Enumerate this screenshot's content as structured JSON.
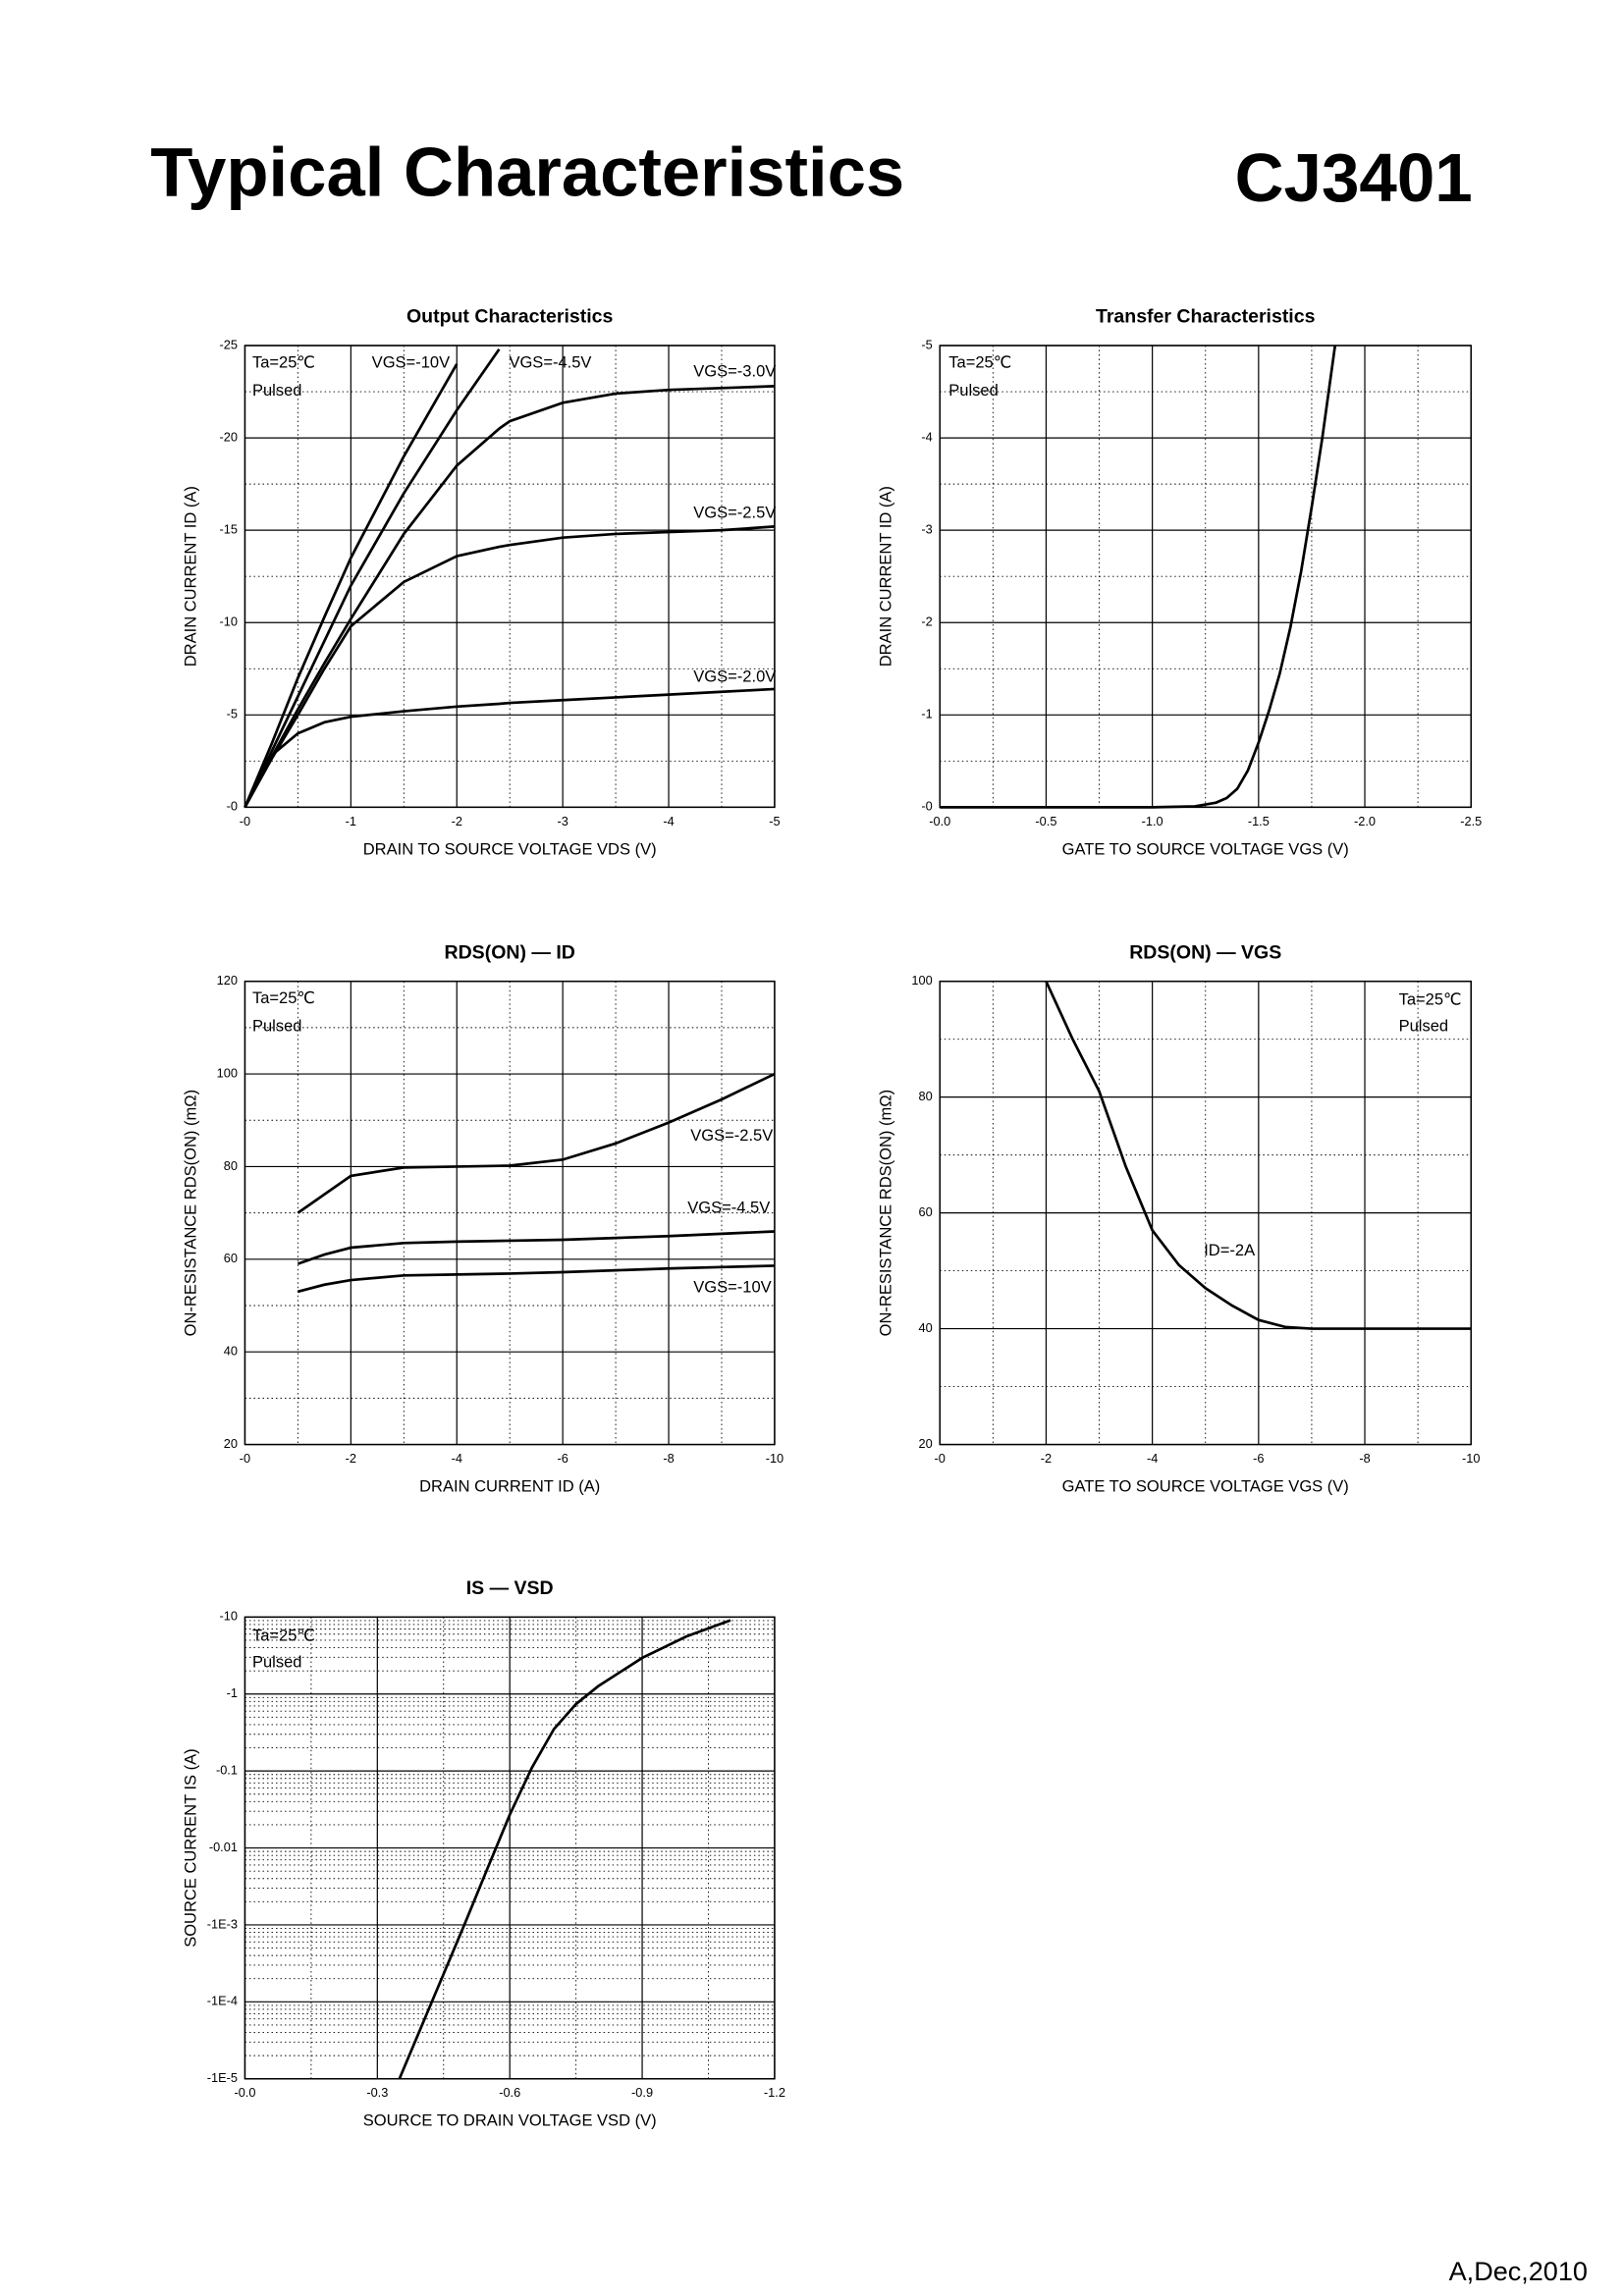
{
  "header": {
    "title": "Typical Characteristics",
    "part": "CJ3401"
  },
  "footer": "A,Dec,2010",
  "chart_data": [
    {
      "type": "line",
      "title": "Output Characteristics",
      "x_label": "DRAIN TO SOURCE VOLTAGE VDS (V)",
      "y_label": "DRAIN CURRENT ID (A)",
      "annotations": [
        "Ta=25℃",
        "Pulsed"
      ],
      "x": [
        0,
        -0.25,
        -0.5,
        -0.75,
        -1,
        -1.5,
        -2,
        -2.4,
        -2.5,
        -3,
        -3.5,
        -4,
        -4.5,
        -5
      ],
      "series": [
        {
          "name": "VGS=-10V",
          "color": "#000000",
          "values": [
            0,
            -3.4,
            -7,
            -10.3,
            -13.5,
            -19,
            -24,
            null,
            null,
            null,
            null,
            null,
            null,
            null
          ]
        },
        {
          "name": "VGS=-4.5V",
          "color": "#000000",
          "values": [
            0,
            -3,
            -6,
            -9,
            -12,
            -17,
            -21.5,
            -24.8,
            null,
            null,
            null,
            null,
            null,
            null
          ]
        },
        {
          "name": "VGS=-3.0V",
          "color": "#000000",
          "values": [
            0,
            -2.7,
            -5.3,
            -7.8,
            -10.2,
            -14.8,
            -18.5,
            -20.5,
            -20.9,
            -21.9,
            -22.4,
            -22.6,
            -22.7,
            -22.8
          ]
        },
        {
          "name": "VGS=-2.5V",
          "color": "#000000",
          "values": [
            0,
            -2.6,
            -5,
            -7.5,
            -9.8,
            -12.2,
            -13.6,
            -14.1,
            -14.2,
            -14.6,
            -14.8,
            -14.9,
            -15,
            -15.2
          ]
        },
        {
          "name": "VGS=-2.0V",
          "color": "#000000",
          "values": [
            0,
            -2.8,
            -4,
            -4.6,
            -4.9,
            -5.2,
            -5.45,
            -5.6,
            -5.65,
            -5.8,
            -5.95,
            -6.1,
            -6.25,
            -6.4
          ]
        }
      ],
      "xlim": [
        0,
        -5
      ],
      "xticks": [
        {
          "value": 0,
          "label": "-0"
        },
        -1,
        -2,
        -3,
        -4,
        -5
      ],
      "ylim": [
        0,
        -25
      ],
      "yticks": [
        {
          "value": 0,
          "label": "-0"
        },
        -5,
        -10,
        -15,
        -20,
        -25
      ],
      "grid": true,
      "minor_grid": true
    },
    {
      "type": "line",
      "title": "Transfer Characteristics",
      "x_label": "GATE TO SOURCE VOLTAGE VGS (V)",
      "y_label": "DRAIN CURRENT ID (A)",
      "annotations": [
        "Ta=25℃",
        "Pulsed"
      ],
      "x": [
        0,
        -0.5,
        -1,
        -1.2,
        -1.3,
        -1.35,
        -1.4,
        -1.45,
        -1.5,
        -1.55,
        -1.6,
        -1.65,
        -1.7,
        -1.75,
        -1.8,
        -1.86
      ],
      "series": [
        {
          "name": null,
          "color": "#000000",
          "values": [
            0,
            0,
            0,
            -0.01,
            -0.05,
            -0.1,
            -0.2,
            -0.4,
            -0.7,
            -1.05,
            -1.45,
            -1.95,
            -2.55,
            -3.25,
            -4,
            -5
          ]
        }
      ],
      "xlim": [
        0,
        -2.5
      ],
      "xticks": [
        {
          "value": 0,
          "label": "-0.0"
        },
        -0.5,
        {
          "value": -1,
          "label": "-1.0"
        },
        -1.5,
        {
          "value": -2,
          "label": "-2.0"
        },
        -2.5
      ],
      "ylim": [
        0,
        -5
      ],
      "yticks": [
        {
          "value": 0,
          "label": "-0"
        },
        -1,
        -2,
        -3,
        -4,
        -5
      ],
      "grid": true,
      "minor_grid": true
    },
    {
      "type": "line",
      "title": "RDS(ON) — ID",
      "x_label": "DRAIN CURRENT ID (A)",
      "y_label": "ON-RESISTANCE RDS(ON) (mΩ)",
      "annotations": [
        "Ta=25℃",
        "Pulsed"
      ],
      "x": [
        -1,
        -1.5,
        -2,
        -3,
        -4,
        -5,
        -6,
        -7,
        -8,
        -9,
        -10
      ],
      "series": [
        {
          "name": "VGS=-2.5V",
          "color": "#000000",
          "values": [
            70,
            74,
            78,
            79.8,
            80,
            80.2,
            81.5,
            85,
            89.5,
            94.5,
            100
          ]
        },
        {
          "name": "VGS=-4.5V",
          "color": "#000000",
          "values": [
            59,
            61,
            62.5,
            63.5,
            63.8,
            64,
            64.2,
            64.6,
            65,
            65.5,
            66
          ]
        },
        {
          "name": "VGS=-10V",
          "color": "#000000",
          "values": [
            53,
            54.5,
            55.5,
            56.5,
            56.7,
            56.9,
            57.2,
            57.6,
            58,
            58.3,
            58.6
          ]
        }
      ],
      "xlim": [
        0,
        -10
      ],
      "xticks": [
        {
          "value": 0,
          "label": "-0"
        },
        -2,
        -4,
        -6,
        -8,
        -10
      ],
      "ylim": [
        20,
        120
      ],
      "yticks": [
        20,
        40,
        60,
        80,
        100,
        120
      ],
      "grid": true,
      "minor_grid": true
    },
    {
      "type": "line",
      "title": "RDS(ON) — VGS",
      "x_label": "GATE TO SOURCE VOLTAGE VGS (V)",
      "y_label": "ON-RESISTANCE RDS(ON) (mΩ)",
      "annotations": [
        "Ta=25℃",
        "Pulsed"
      ],
      "x": [
        -2,
        -2.5,
        -3,
        -3.5,
        -4,
        -4.5,
        -5,
        -5.5,
        -6,
        -6.5,
        -7,
        -8,
        -9,
        -10
      ],
      "series": [
        {
          "name": "ID=-2A",
          "color": "#000000",
          "values": [
            100,
            90,
            81,
            68,
            57,
            51,
            47,
            44,
            41.5,
            40.3,
            40,
            40,
            40,
            40
          ]
        }
      ],
      "xlim": [
        0,
        -10
      ],
      "xticks": [
        {
          "value": 0,
          "label": "-0"
        },
        -2,
        -4,
        -6,
        -8,
        -10
      ],
      "ylim": [
        20,
        100
      ],
      "yticks": [
        20,
        40,
        60,
        80,
        100
      ],
      "grid": true,
      "minor_grid": true
    },
    {
      "type": "line",
      "title": "IS — VSD",
      "x_label": "SOURCE TO DRAIN VOLTAGE VSD (V)",
      "y_label": "SOURCE CURRENT IS (A)",
      "annotations": [
        "Ta=25℃",
        "Pulsed"
      ],
      "x": [
        -0.35,
        -0.4,
        -0.45,
        -0.5,
        -0.55,
        -0.6,
        -0.65,
        -0.7,
        -0.75,
        -0.8,
        -0.9,
        -1.0,
        -1.1
      ],
      "series": [
        {
          "name": null,
          "color": "#000000",
          "values": [
            -1e-05,
            -4.8e-05,
            -0.00023,
            -0.0011,
            -0.0055,
            -0.027,
            -0.11,
            -0.35,
            -0.74,
            -1.26,
            -2.95,
            -5.6,
            -9.1
          ]
        }
      ],
      "xlim": [
        0,
        -1.2
      ],
      "xticks": [
        {
          "value": 0,
          "label": "-0.0"
        },
        -0.3,
        -0.6,
        -0.9,
        -1.2
      ],
      "ylim": [
        -1e-05,
        -10
      ],
      "yticks": [
        {
          "value": -1e-05,
          "label": "-1E-5"
        },
        {
          "value": -0.0001,
          "label": "-1E-4"
        },
        {
          "value": -0.001,
          "label": "-1E-3"
        },
        -0.01,
        -0.1,
        -1,
        -10
      ],
      "log_y": true,
      "grid": true,
      "minor_grid": true
    }
  ]
}
